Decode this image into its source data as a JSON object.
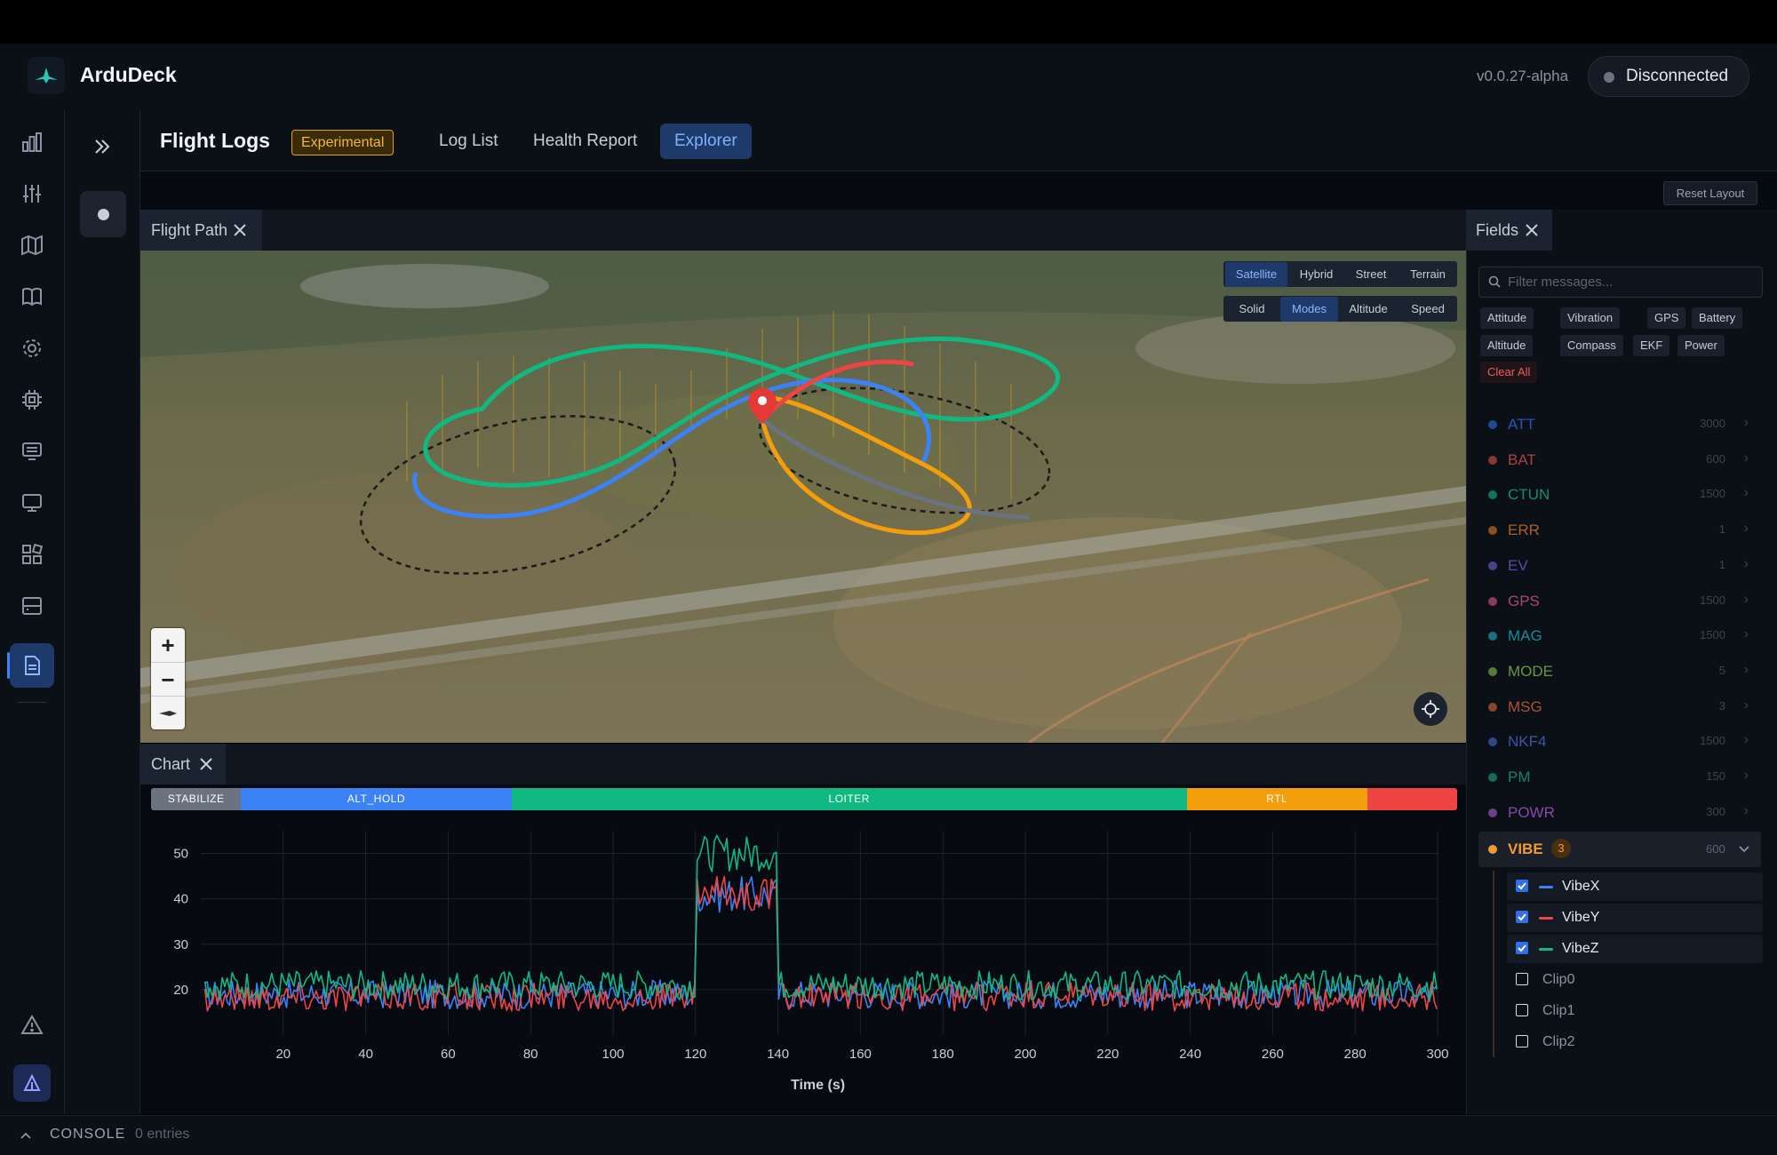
{
  "app": {
    "name": "ArduDeck",
    "version": "v0.0.27-alpha",
    "connection_status": "Disconnected"
  },
  "sidebar": {
    "icons": [
      "bar-chart-icon",
      "sliders-icon",
      "map-icon",
      "book-icon",
      "gear-icon",
      "chip-icon",
      "monitor-icon",
      "desktop-icon",
      "grid-icon",
      "server-icon",
      "document-icon"
    ],
    "warning_icon": "warning-icon",
    "bottom_icon": "ardupilot-icon"
  },
  "page": {
    "title": "Flight Logs",
    "badge": "Experimental",
    "tabs": [
      "Log List",
      "Health Report",
      "Explorer"
    ],
    "active_tab": "Explorer"
  },
  "reset_layout_label": "Reset Layout",
  "map_panel": {
    "tab_label": "Flight Path",
    "basemap_options": [
      "Satellite",
      "Hybrid",
      "Street",
      "Terrain"
    ],
    "active_basemap": "Satellite",
    "color_options": [
      "Solid",
      "Modes",
      "Altitude",
      "Speed"
    ],
    "active_color": "Modes",
    "zoom_in": "+",
    "zoom_out": "−"
  },
  "chart_panel": {
    "tab_label": "Chart"
  },
  "fields_panel": {
    "tab_label": "Fields",
    "filter_placeholder": "Filter messages...",
    "presets_row1": [
      "Attitude",
      "Vibration",
      "GPS",
      "Battery"
    ],
    "presets_row2": [
      "Altitude",
      "Compass",
      "EKF",
      "Power"
    ],
    "clear_all": "Clear All",
    "messages": [
      {
        "name": "ATT",
        "count": "3000",
        "color": "#2f6fe8"
      },
      {
        "name": "BAT",
        "count": "600",
        "color": "#e05252"
      },
      {
        "name": "CTUN",
        "count": "1500",
        "color": "#17b890"
      },
      {
        "name": "ERR",
        "count": "1",
        "color": "#e07a2a"
      },
      {
        "name": "EV",
        "count": "1",
        "color": "#7b5be0"
      },
      {
        "name": "GPS",
        "count": "1500",
        "color": "#e05a8a"
      },
      {
        "name": "MAG",
        "count": "1500",
        "color": "#1fb3c8"
      },
      {
        "name": "MODE",
        "count": "5",
        "color": "#8bc34a"
      },
      {
        "name": "MSG",
        "count": "3",
        "color": "#e06a3a"
      },
      {
        "name": "NKF4",
        "count": "1500",
        "color": "#4b6be0"
      },
      {
        "name": "PM",
        "count": "150",
        "color": "#17a890"
      },
      {
        "name": "POWR",
        "count": "300",
        "color": "#b05be0"
      }
    ],
    "expanded": {
      "name": "VIBE",
      "badge": "3",
      "count": "600",
      "color": "#f29a2e",
      "fields": [
        {
          "name": "VibeX",
          "checked": true,
          "color": "#3b82f6"
        },
        {
          "name": "VibeY",
          "checked": true,
          "color": "#ef4444"
        },
        {
          "name": "VibeZ",
          "checked": true,
          "color": "#10b981"
        },
        {
          "name": "Clip0",
          "checked": false
        },
        {
          "name": "Clip1",
          "checked": false
        },
        {
          "name": "Clip2",
          "checked": false
        }
      ]
    }
  },
  "console": {
    "label": "CONSOLE",
    "entries": "0 entries"
  },
  "chart_data": {
    "type": "line",
    "xlabel": "Time (s)",
    "xlim": [
      0,
      300
    ],
    "ylim": [
      10,
      55
    ],
    "x_ticks": [
      20,
      40,
      60,
      80,
      100,
      120,
      140,
      160,
      180,
      200,
      220,
      240,
      260,
      280,
      300
    ],
    "y_ticks": [
      20,
      30,
      40,
      50
    ],
    "mode_bands": [
      {
        "label": "STABILIZE",
        "start": 0,
        "end": 20,
        "color": "#6b7280"
      },
      {
        "label": "ALT_HOLD",
        "start": 20,
        "end": 80,
        "color": "#3b82f6"
      },
      {
        "label": "LOITER",
        "start": 80,
        "end": 230,
        "color": "#10b981"
      },
      {
        "label": "RTL",
        "start": 230,
        "end": 270,
        "color": "#f59e0b"
      },
      {
        "label": "",
        "start": 270,
        "end": 290,
        "color": "#ef4444"
      }
    ],
    "series": [
      {
        "name": "VibeX",
        "color": "#3b82f6",
        "baseline": 19,
        "peak_start": 120,
        "peak_end": 140,
        "peak_level": 41
      },
      {
        "name": "VibeY",
        "color": "#ef4444",
        "baseline": 18.5,
        "peak_start": 120,
        "peak_end": 140,
        "peak_level": 41
      },
      {
        "name": "VibeZ",
        "color": "#10b981",
        "baseline": 21,
        "peak_start": 120,
        "peak_end": 140,
        "peak_level": 50
      }
    ]
  }
}
